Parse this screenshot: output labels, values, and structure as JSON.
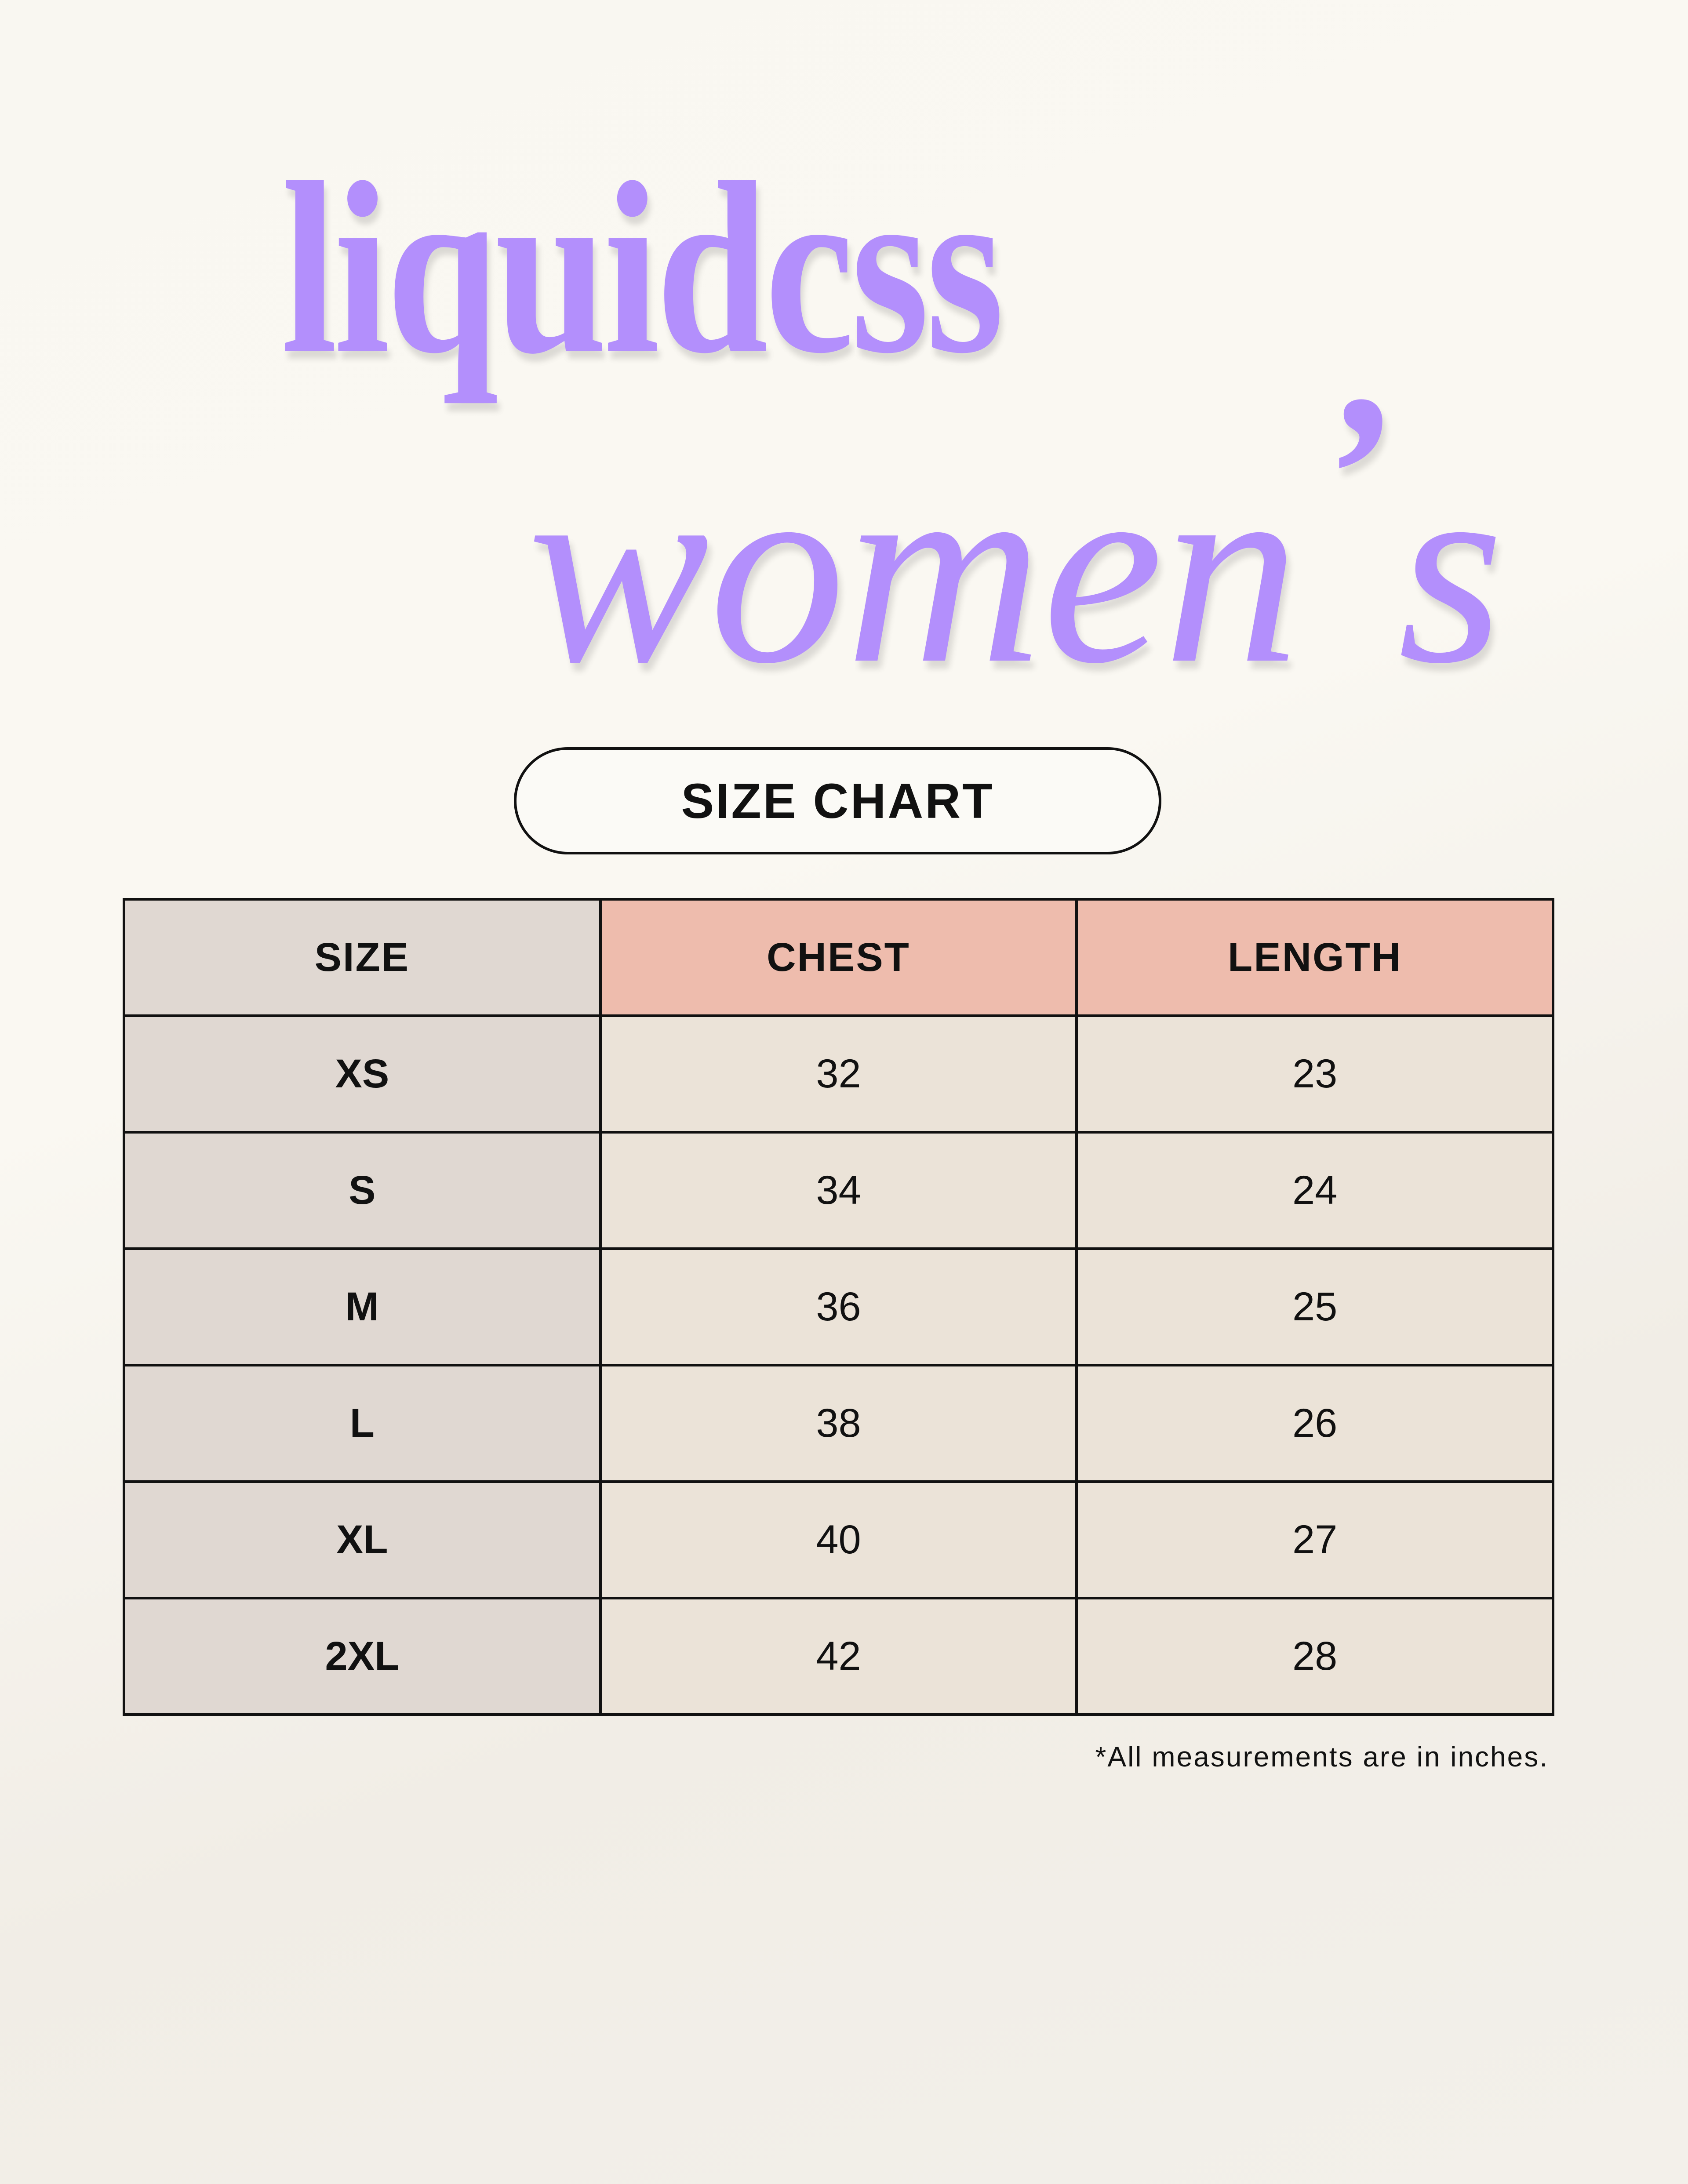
{
  "title": {
    "line1": "liquidcss",
    "line2_word": "women",
    "apostrophe": "’",
    "line2_suffix": "s"
  },
  "badge": "SIZE CHART",
  "table": {
    "headers": [
      "SIZE",
      "CHEST",
      "LENGTH"
    ],
    "rows": [
      [
        "XS",
        "32",
        "23"
      ],
      [
        "S",
        "34",
        "24"
      ],
      [
        "M",
        "36",
        "25"
      ],
      [
        "L",
        "38",
        "26"
      ],
      [
        "XL",
        "40",
        "27"
      ],
      [
        "2XL",
        "42",
        "28"
      ]
    ]
  },
  "footnote": "*All measurements are in inches.",
  "colors": {
    "title": "#b38ffc",
    "size_column": "#e0d8d2",
    "header_accent": "#eebcad",
    "cell": "#ebe3d8"
  }
}
